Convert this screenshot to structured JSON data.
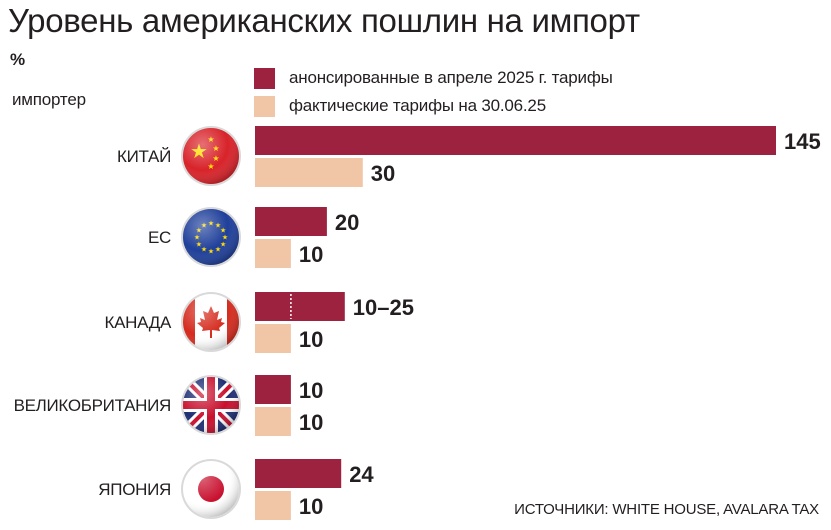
{
  "title": "Уровень американских пошлин на импорт",
  "unit": "%",
  "category_axis_label": "импортер",
  "source": "ИСТОЧНИКИ: WHITE HOUSE, AVALARA TAX",
  "colors": {
    "announced": "#9c223f",
    "actual": "#f1c6a6",
    "text": "#231f20"
  },
  "chart_data": {
    "type": "bar",
    "orientation": "horizontal",
    "categories": [
      "КИТАЙ",
      "ЕС",
      "КАНАДА",
      "ВЕЛИКОБРИТАНИЯ",
      "ЯПОНИЯ"
    ],
    "category_icons": [
      "china-flag-icon",
      "eu-flag-icon",
      "canada-flag-icon",
      "uk-flag-icon",
      "japan-flag-icon"
    ],
    "series": [
      {
        "name": "анонсированные в апреле 2025 г. тарифы",
        "color": "#9c223f",
        "values": [
          145,
          20,
          25,
          10,
          24
        ],
        "range_low": [
          null,
          null,
          10,
          null,
          null
        ],
        "labels": [
          "145",
          "20",
          "10–25",
          "10",
          "24"
        ]
      },
      {
        "name": "фактические тарифы на 30.06.25",
        "color": "#f1c6a6",
        "values": [
          30,
          10,
          10,
          10,
          10
        ],
        "labels": [
          "30",
          "10",
          "10",
          "10",
          "10"
        ]
      }
    ],
    "xlim": [
      0,
      145
    ],
    "grid": false,
    "legend_position": "top"
  }
}
